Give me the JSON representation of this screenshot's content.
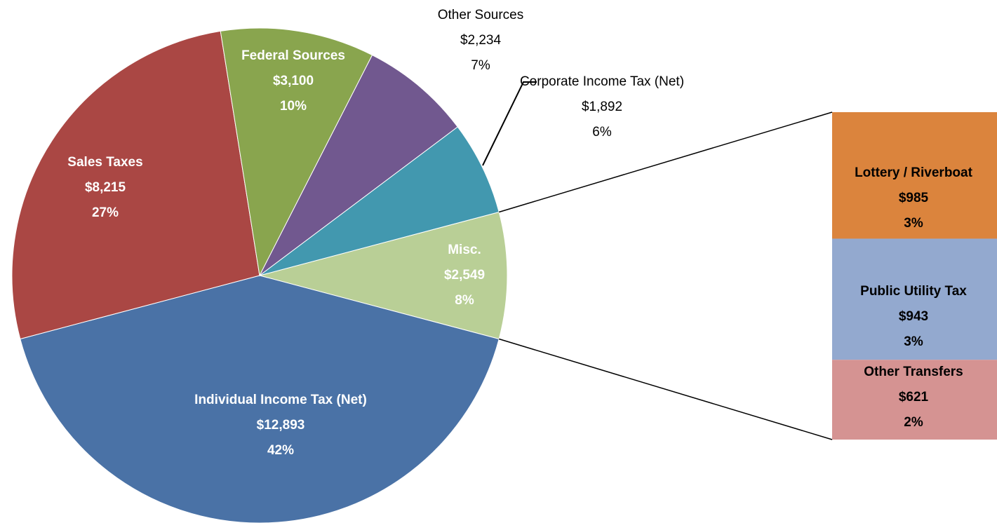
{
  "chart_data": {
    "type": "pie-of-bar",
    "categories": [
      "Misc.",
      "Individual Income Tax (Net)",
      "Sales Taxes",
      "Federal Sources",
      "Other Sources",
      "Corporate Income Tax (Net)"
    ],
    "values": [
      2549,
      12893,
      8215,
      3100,
      2234,
      1892
    ],
    "value_labels": [
      "$2,549",
      "$12,893",
      "$8,215",
      "$3,100",
      "$2,234",
      "$1,892"
    ],
    "percents": [
      8,
      42,
      27,
      10,
      7,
      6
    ],
    "percent_labels": [
      "8%",
      "42%",
      "27%",
      "10%",
      "7%",
      "6%"
    ],
    "colors": [
      "#b9cf96",
      "#4a72a6",
      "#aa4744",
      "#89a54e",
      "#71588f",
      "#4298af"
    ],
    "breakdown": {
      "categories": [
        "Lottery / Riverboat",
        "Public Utility Tax",
        "Other Transfers"
      ],
      "values": [
        985,
        943,
        621
      ],
      "value_labels": [
        "$985",
        "$943",
        "$621"
      ],
      "percents": [
        3,
        3,
        2
      ],
      "percent_labels": [
        "3%",
        "3%",
        "2%"
      ],
      "colors": [
        "#db843d",
        "#93a9cf",
        "#d59392"
      ]
    }
  }
}
